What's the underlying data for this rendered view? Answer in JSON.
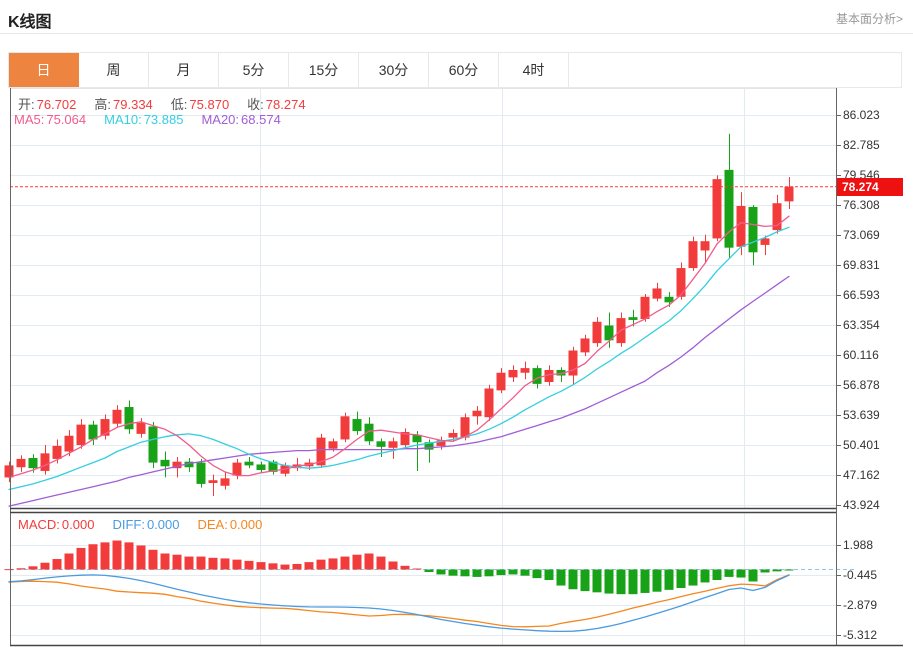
{
  "header": {
    "title": "K线图",
    "link": "基本面分析>"
  },
  "tabs": {
    "items": [
      "日",
      "周",
      "月",
      "5分",
      "15分",
      "30分",
      "60分",
      "4时"
    ],
    "active_index": 0
  },
  "legend": {
    "ohlc": [
      {
        "label": "开:",
        "value": "76.702"
      },
      {
        "label": "高:",
        "value": "79.334"
      },
      {
        "label": "低:",
        "value": "75.870"
      },
      {
        "label": "收:",
        "value": "78.274"
      }
    ],
    "ma": [
      {
        "label": "MA5:",
        "value": "75.064",
        "color": "#f25c8c"
      },
      {
        "label": "MA10:",
        "value": "73.885",
        "color": "#33cfe0"
      },
      {
        "label": "MA20:",
        "value": "68.574",
        "color": "#a05ed6"
      }
    ],
    "macd": [
      {
        "label": "MACD:",
        "value": "0.000",
        "color": "#f23c3c"
      },
      {
        "label": "DIFF:",
        "value": "0.000",
        "color": "#4a9be0"
      },
      {
        "label": "DEA:",
        "value": "0.000",
        "color": "#f5871f"
      }
    ]
  },
  "price_marker": {
    "value": "78.274",
    "price": 78.274
  },
  "colors": {
    "up": "#f23c3c",
    "down": "#18a218",
    "ma5": "#f25c8c",
    "ma10": "#33cfe0",
    "ma20": "#a05ed6",
    "diff": "#4a9be0",
    "dea": "#f5871f",
    "grid": "#e2eaf2",
    "axis": "#666",
    "panel_top": "#e4e4e4",
    "zero_dash": "#85cbe8",
    "price_line": "#f23c3c",
    "ohlc_label": "#555",
    "ohlc_value": "#f23c3c",
    "tab_active_bg": "#ed8540"
  },
  "chart_data": {
    "type": "candlestick+macd",
    "title": "K线图 日K (daily candlestick with MA5/MA10/MA20 and MACD)",
    "main": {
      "y_ticks": [
        "86.023",
        "82.785",
        "79.546",
        "76.308",
        "73.069",
        "69.831",
        "66.593",
        "63.354",
        "60.116",
        "56.878",
        "53.639",
        "50.401",
        "47.162",
        "43.924"
      ],
      "y_tick_values": [
        86.023,
        82.785,
        79.546,
        76.308,
        73.069,
        69.831,
        66.593,
        63.354,
        60.116,
        56.878,
        53.639,
        50.401,
        47.162,
        43.924
      ],
      "last_price": 78.274,
      "candles_ohlc_note": "arrays are [open,high,low,close]; red=close>=open, green=close<open",
      "candles": [
        [
          46.9,
          48.6,
          46.4,
          48.2
        ],
        [
          48.0,
          49.3,
          47.5,
          48.9
        ],
        [
          49.0,
          49.4,
          47.4,
          47.9
        ],
        [
          47.6,
          50.4,
          47.2,
          49.5
        ],
        [
          48.9,
          51.0,
          48.4,
          50.3
        ],
        [
          49.7,
          52.0,
          49.2,
          51.4
        ],
        [
          50.4,
          53.2,
          50.0,
          52.6
        ],
        [
          52.6,
          53.0,
          50.4,
          51.0
        ],
        [
          51.4,
          53.7,
          51.0,
          53.2
        ],
        [
          52.7,
          54.7,
          52.3,
          54.2
        ],
        [
          54.5,
          55.2,
          51.6,
          52.1
        ],
        [
          51.6,
          53.3,
          51.2,
          52.8
        ],
        [
          52.4,
          52.9,
          47.9,
          48.5
        ],
        [
          48.8,
          49.7,
          46.9,
          48.1
        ],
        [
          47.9,
          49.1,
          46.9,
          48.6
        ],
        [
          48.6,
          49.0,
          47.5,
          48.0
        ],
        [
          48.5,
          48.9,
          45.8,
          46.2
        ],
        [
          46.3,
          47.2,
          44.9,
          46.6
        ],
        [
          46.0,
          47.5,
          45.6,
          46.8
        ],
        [
          47.1,
          48.9,
          46.7,
          48.5
        ],
        [
          48.6,
          49.1,
          47.9,
          48.2
        ],
        [
          48.3,
          48.6,
          47.4,
          47.7
        ],
        [
          48.6,
          48.8,
          47.2,
          47.5
        ],
        [
          47.3,
          48.5,
          47.0,
          48.2
        ],
        [
          47.9,
          49.0,
          47.6,
          48.3
        ],
        [
          48.1,
          48.9,
          47.7,
          48.5
        ],
        [
          48.2,
          51.6,
          47.9,
          51.2
        ],
        [
          50.0,
          51.1,
          49.7,
          50.8
        ],
        [
          51.0,
          53.9,
          50.7,
          53.5
        ],
        [
          53.2,
          54.0,
          51.5,
          51.9
        ],
        [
          52.7,
          53.4,
          50.4,
          50.8
        ],
        [
          50.8,
          51.1,
          49.1,
          50.2
        ],
        [
          50.1,
          51.2,
          48.9,
          50.8
        ],
        [
          50.4,
          52.2,
          50.1,
          51.8
        ],
        [
          51.5,
          51.9,
          47.6,
          50.7
        ],
        [
          50.7,
          51.0,
          48.5,
          49.9
        ],
        [
          50.3,
          51.3,
          49.9,
          50.9
        ],
        [
          51.2,
          52.1,
          50.8,
          51.7
        ],
        [
          51.2,
          53.8,
          50.9,
          53.4
        ],
        [
          53.5,
          54.6,
          52.6,
          54.1
        ],
        [
          53.4,
          56.9,
          53.0,
          56.5
        ],
        [
          56.3,
          58.7,
          56.0,
          58.2
        ],
        [
          57.7,
          59.0,
          57.2,
          58.5
        ],
        [
          58.2,
          59.4,
          57.5,
          58.7
        ],
        [
          58.7,
          59.0,
          56.5,
          57.0
        ],
        [
          57.2,
          59.0,
          56.8,
          58.5
        ],
        [
          58.5,
          58.8,
          57.2,
          57.9
        ],
        [
          57.9,
          61.0,
          56.9,
          60.6
        ],
        [
          60.4,
          62.3,
          60.0,
          61.9
        ],
        [
          61.4,
          64.2,
          61.0,
          63.7
        ],
        [
          63.3,
          64.7,
          60.9,
          61.7
        ],
        [
          61.4,
          64.7,
          61.0,
          64.1
        ],
        [
          64.2,
          65.0,
          63.2,
          63.9
        ],
        [
          64.0,
          66.7,
          63.7,
          66.4
        ],
        [
          66.2,
          67.9,
          65.9,
          67.3
        ],
        [
          66.4,
          66.9,
          65.3,
          65.8
        ],
        [
          66.4,
          70.1,
          66.1,
          69.5
        ],
        [
          69.5,
          72.9,
          69.2,
          72.4
        ],
        [
          71.4,
          73.1,
          70.0,
          72.4
        ],
        [
          72.7,
          79.5,
          72.4,
          79.1
        ],
        [
          80.1,
          84.0,
          70.6,
          71.7
        ],
        [
          71.8,
          77.7,
          70.9,
          76.2
        ],
        [
          76.1,
          76.3,
          69.8,
          71.2
        ],
        [
          72.0,
          73.0,
          70.9,
          72.7
        ],
        [
          73.6,
          77.4,
          73.2,
          76.5
        ],
        [
          76.702,
          79.334,
          75.87,
          78.274
        ]
      ],
      "ma5": [
        46.9,
        47.3,
        47.7,
        48.2,
        48.8,
        49.5,
        50.2,
        51.0,
        51.6,
        52.3,
        52.7,
        52.9,
        52.5,
        52.1,
        51.4,
        50.4,
        49.2,
        48.2,
        47.5,
        47.1,
        47.1,
        47.4,
        47.6,
        47.8,
        48.1,
        48.3,
        48.6,
        49.1,
        50.0,
        51.0,
        51.9,
        52.0,
        51.8,
        51.6,
        51.5,
        51.2,
        50.9,
        50.8,
        51.3,
        52.0,
        53.1,
        54.3,
        55.5,
        56.8,
        57.6,
        58.0,
        58.1,
        58.5,
        59.2,
        60.5,
        61.6,
        62.8,
        63.4,
        64.0,
        64.8,
        65.5,
        66.6,
        68.3,
        70.0,
        72.1,
        73.4,
        74.4,
        74.2,
        74.0,
        74.1,
        75.1
      ],
      "ma10": [
        45.6,
        45.9,
        46.2,
        46.6,
        47.0,
        47.5,
        48.0,
        48.5,
        49.0,
        49.7,
        50.2,
        50.7,
        51.0,
        51.3,
        51.5,
        51.6,
        51.4,
        51.0,
        50.5,
        50.0,
        49.4,
        48.9,
        48.5,
        48.2,
        48.0,
        47.9,
        48.0,
        48.2,
        48.5,
        48.8,
        49.2,
        49.5,
        49.8,
        50.1,
        50.4,
        50.6,
        50.8,
        51.0,
        51.3,
        51.6,
        52.1,
        52.7,
        53.4,
        54.2,
        54.9,
        55.6,
        56.2,
        56.9,
        57.7,
        58.6,
        59.4,
        60.3,
        61.1,
        62.0,
        62.9,
        63.8,
        64.9,
        66.2,
        67.6,
        69.2,
        70.5,
        71.8,
        72.3,
        72.8,
        73.4,
        73.9
      ],
      "ma20": [
        43.8,
        44.1,
        44.4,
        44.7,
        45.0,
        45.3,
        45.6,
        45.9,
        46.2,
        46.5,
        46.9,
        47.2,
        47.5,
        47.8,
        48.1,
        48.4,
        48.6,
        48.8,
        49.0,
        49.2,
        49.4,
        49.5,
        49.6,
        49.7,
        49.8,
        49.8,
        49.9,
        49.9,
        49.9,
        49.9,
        49.9,
        49.9,
        49.9,
        50.0,
        50.0,
        50.1,
        50.2,
        50.3,
        50.5,
        50.7,
        51.0,
        51.3,
        51.7,
        52.1,
        52.5,
        52.9,
        53.3,
        53.8,
        54.3,
        54.9,
        55.5,
        56.1,
        56.7,
        57.3,
        58.2,
        59.0,
        59.9,
        60.9,
        62.0,
        63.0,
        64.0,
        65.0,
        65.9,
        66.8,
        67.7,
        68.6
      ]
    },
    "macd": {
      "y_ticks": [
        "1.988",
        "-0.445",
        "-2.879",
        "-5.312"
      ],
      "y_tick_values": [
        1.988,
        -0.445,
        -2.879,
        -5.312
      ],
      "hist": [
        0.03,
        0.1,
        0.26,
        0.55,
        0.85,
        1.3,
        1.75,
        2.05,
        2.2,
        2.35,
        2.2,
        1.95,
        1.6,
        1.3,
        1.2,
        1.05,
        1.05,
        0.95,
        0.9,
        0.8,
        0.7,
        0.6,
        0.5,
        0.4,
        0.45,
        0.6,
        0.8,
        0.9,
        1.05,
        1.2,
        1.3,
        1.05,
        0.65,
        0.3,
        0.08,
        -0.2,
        -0.4,
        -0.5,
        -0.55,
        -0.6,
        -0.55,
        -0.45,
        -0.4,
        -0.5,
        -0.7,
        -0.85,
        -1.3,
        -1.6,
        -1.75,
        -1.85,
        -1.95,
        -2.0,
        -2.0,
        -1.9,
        -1.8,
        -1.65,
        -1.5,
        -1.3,
        -1.05,
        -0.85,
        -0.6,
        -0.65,
        -0.97,
        -0.24,
        -0.15,
        -0.05
      ],
      "diff": [
        -1.0,
        -0.92,
        -0.82,
        -0.7,
        -0.6,
        -0.52,
        -0.46,
        -0.44,
        -0.48,
        -0.58,
        -0.72,
        -0.9,
        -1.12,
        -1.36,
        -1.6,
        -1.82,
        -2.04,
        -2.24,
        -2.42,
        -2.58,
        -2.7,
        -2.8,
        -2.88,
        -2.95,
        -3.0,
        -3.03,
        -3.04,
        -3.04,
        -3.05,
        -3.08,
        -3.12,
        -3.2,
        -3.32,
        -3.48,
        -3.65,
        -3.85,
        -4.05,
        -4.22,
        -4.38,
        -4.52,
        -4.65,
        -4.75,
        -4.83,
        -4.9,
        -4.96,
        -5.0,
        -5.02,
        -5.0,
        -4.92,
        -4.78,
        -4.6,
        -4.38,
        -4.12,
        -3.85,
        -3.56,
        -3.26,
        -2.95,
        -2.62,
        -2.28,
        -1.95,
        -1.62,
        -1.5,
        -1.7,
        -1.45,
        -0.9,
        -0.45
      ],
      "dea": [
        -1.02,
        -0.97,
        -0.95,
        -0.98,
        -1.03,
        -1.17,
        -1.34,
        -1.47,
        -1.58,
        -1.76,
        -1.82,
        -1.88,
        -1.92,
        -2.01,
        -2.2,
        -2.35,
        -2.57,
        -2.72,
        -2.87,
        -2.98,
        -3.05,
        -3.1,
        -3.13,
        -3.15,
        -3.23,
        -3.33,
        -3.44,
        -3.49,
        -3.58,
        -3.68,
        -3.77,
        -3.73,
        -3.65,
        -3.63,
        -3.69,
        -3.75,
        -3.85,
        -3.97,
        -4.11,
        -4.22,
        -4.38,
        -4.53,
        -4.63,
        -4.65,
        -4.61,
        -4.58,
        -4.37,
        -4.2,
        -4.05,
        -3.86,
        -3.63,
        -3.38,
        -3.12,
        -2.9,
        -2.66,
        -2.44,
        -2.2,
        -1.97,
        -1.76,
        -1.53,
        -1.32,
        -1.18,
        -1.22,
        -1.33,
        -0.83,
        -0.43
      ]
    },
    "layout_hints": {
      "grid": true,
      "legend_position": "top-left overlays",
      "x_axis_labels": "none visible",
      "vertical_gridlines": 3
    }
  }
}
